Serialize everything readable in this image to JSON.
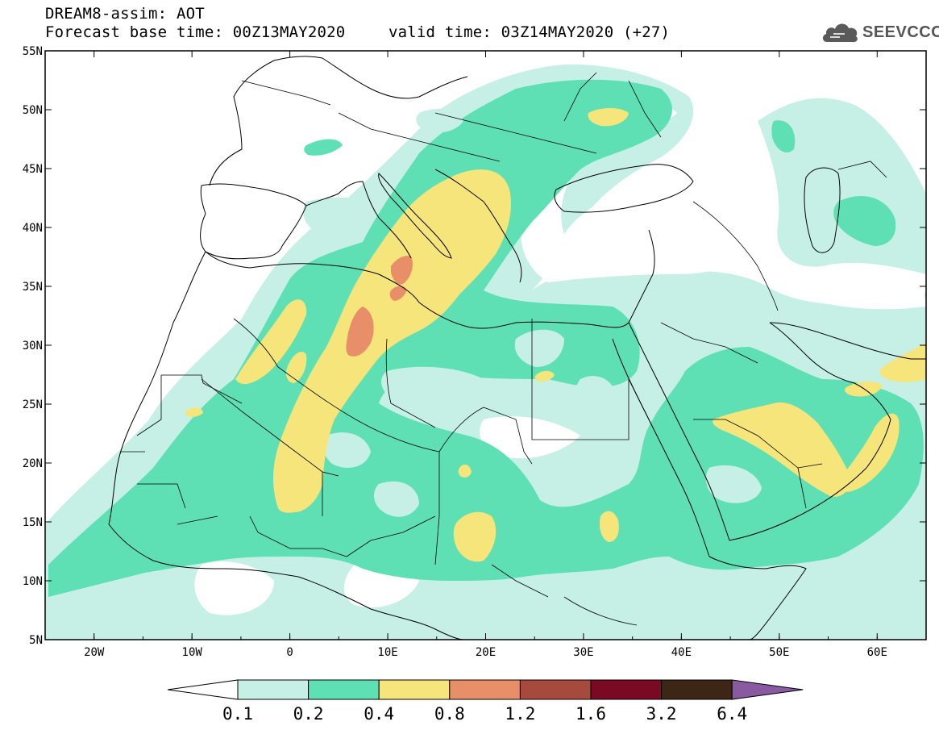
{
  "title": {
    "line1": "DREAM8-assim: AOT",
    "base": "Forecast base time: 00Z13MAY2020",
    "valid": "valid time: 03Z14MAY2020 (+27)"
  },
  "brand": {
    "name": "SEEVCCC",
    "icon": "cloud-logo-icon"
  },
  "map": {
    "lon_range": [
      -25,
      65
    ],
    "lat_range": [
      5,
      55
    ],
    "lat_ticks": [
      {
        "value": 55,
        "label": "55N"
      },
      {
        "value": 50,
        "label": "50N"
      },
      {
        "value": 45,
        "label": "45N"
      },
      {
        "value": 40,
        "label": "40N"
      },
      {
        "value": 35,
        "label": "35N"
      },
      {
        "value": 30,
        "label": "30N"
      },
      {
        "value": 25,
        "label": "25N"
      },
      {
        "value": 20,
        "label": "20N"
      },
      {
        "value": 15,
        "label": "15N"
      },
      {
        "value": 10,
        "label": "10N"
      },
      {
        "value": 5,
        "label": "5N"
      }
    ],
    "lon_ticks": [
      {
        "value": -20,
        "label": "20W"
      },
      {
        "value": -10,
        "label": "10W"
      },
      {
        "value": 0,
        "label": "0"
      },
      {
        "value": 10,
        "label": "10E"
      },
      {
        "value": 20,
        "label": "20E"
      },
      {
        "value": 30,
        "label": "30E"
      },
      {
        "value": 40,
        "label": "40E"
      },
      {
        "value": 50,
        "label": "50E"
      },
      {
        "value": 60,
        "label": "60E"
      }
    ]
  },
  "colorbar": {
    "colors": [
      "#ffffff",
      "#c6f0e6",
      "#5ee0b4",
      "#f5e57a",
      "#e88f6a",
      "#a54a3c",
      "#7a0a24",
      "#3d2616",
      "#8a5aa0"
    ],
    "labels": [
      "0.1",
      "0.2",
      "0.4",
      "0.8",
      "1.2",
      "1.6",
      "3.2",
      "6.4"
    ]
  }
}
